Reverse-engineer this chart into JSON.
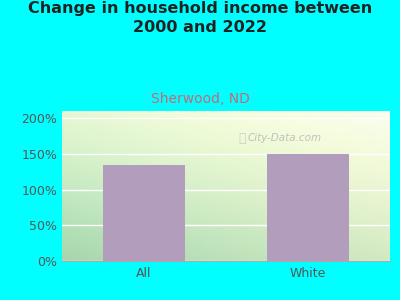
{
  "title": "Change in household income between\n2000 and 2022",
  "subtitle": "Sherwood, ND",
  "categories": [
    "All",
    "White"
  ],
  "values": [
    135,
    150
  ],
  "bar_color": "#b39dbd",
  "title_fontsize": 11.5,
  "subtitle_fontsize": 10,
  "subtitle_color": "#cc6677",
  "tick_label_fontsize": 9,
  "ytick_labels": [
    "0%",
    "50%",
    "100%",
    "150%",
    "200%"
  ],
  "ytick_values": [
    0,
    50,
    100,
    150,
    200
  ],
  "ylim": [
    0,
    210
  ],
  "background_outer": "#00ffff",
  "watermark": "City-Data.com",
  "bar_width": 0.5
}
